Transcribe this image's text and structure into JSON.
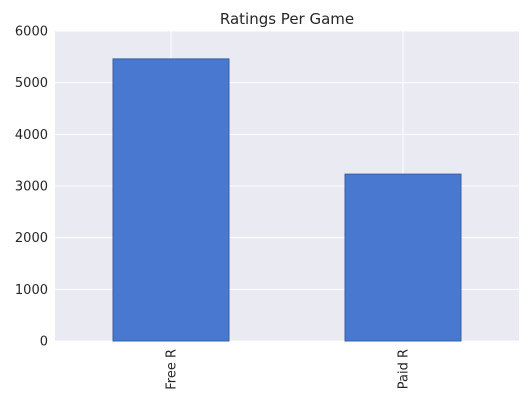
{
  "chart_data": {
    "type": "bar",
    "title": "Ratings Per Game",
    "xlabel": "",
    "ylabel": "",
    "categories": [
      "Free R",
      "Paid R"
    ],
    "values": [
      5460,
      3230
    ],
    "ylim": [
      0,
      6000
    ],
    "yticks": [
      0,
      1000,
      2000,
      3000,
      4000,
      5000,
      6000
    ],
    "grid": true,
    "legend": "none",
    "colors": {
      "bar": "#4878cf",
      "bar_edge": "#3a5fa3",
      "plot_background": "#eaeaf2",
      "grid": "#ffffff"
    }
  }
}
